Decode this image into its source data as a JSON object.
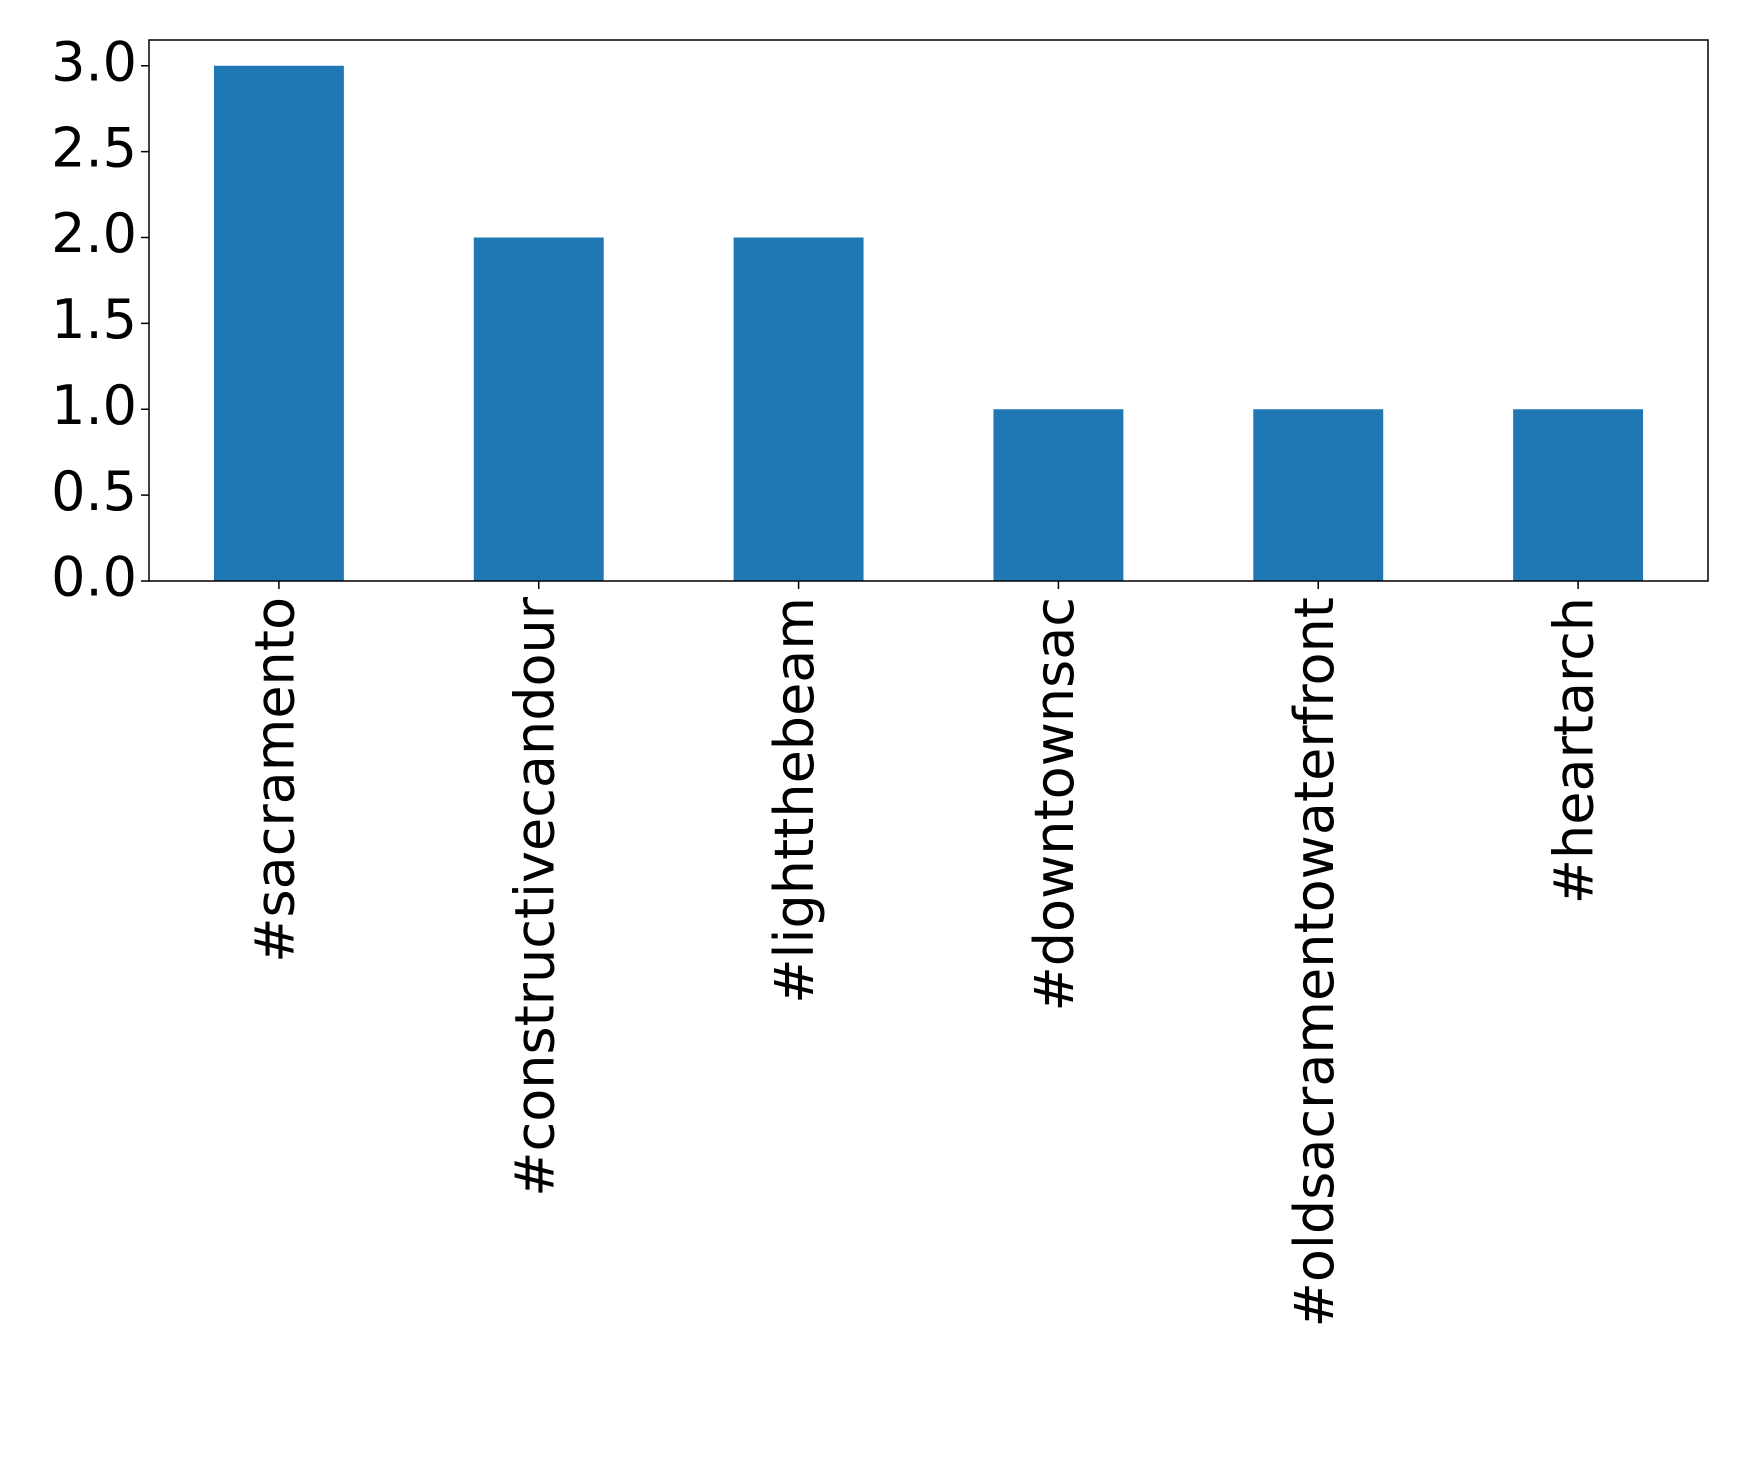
{
  "chart_data": {
    "type": "bar",
    "categories": [
      "#sacramento",
      "#constructivecandour",
      "#lightthebeam",
      "#downtownsac",
      "#oldsacramentowaterfront",
      "#heartarch"
    ],
    "values": [
      3,
      2,
      2,
      1,
      1,
      1
    ],
    "color": "#1f77b4",
    "ylim": [
      0,
      3.15
    ],
    "yticks": [
      {
        "value": 0,
        "label": "0.0"
      },
      {
        "value": 0.5,
        "label": "0.5"
      },
      {
        "value": 1,
        "label": "1.0"
      },
      {
        "value": 1.5,
        "label": "1.5"
      },
      {
        "value": 2,
        "label": "2.0"
      },
      {
        "value": 2.5,
        "label": "2.5"
      },
      {
        "value": 3,
        "label": "3.0"
      }
    ],
    "grid": false
  }
}
